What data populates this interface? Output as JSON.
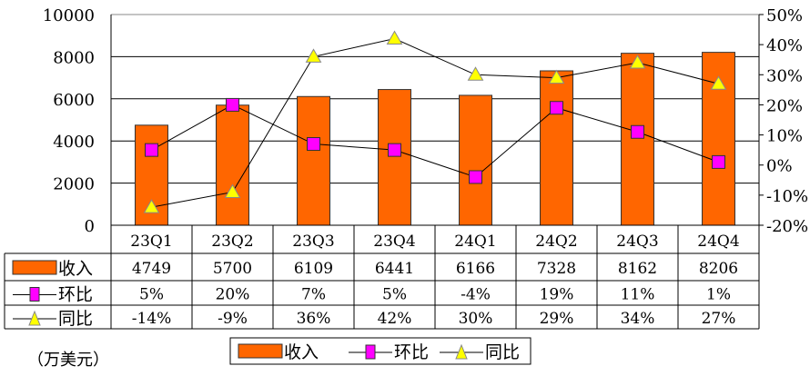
{
  "chart_data": {
    "type": "bar",
    "categories": [
      "23Q1",
      "23Q2",
      "23Q3",
      "23Q4",
      "24Q1",
      "24Q2",
      "24Q3",
      "24Q4"
    ],
    "series": [
      {
        "name": "收入",
        "type": "bar",
        "axis": "left",
        "color": "#FF6600",
        "values": [
          4749,
          5700,
          6109,
          6441,
          6166,
          7328,
          8162,
          8206
        ],
        "labels": [
          "4749",
          "5700",
          "6109",
          "6441",
          "6166",
          "7328",
          "8162",
          "8206"
        ]
      },
      {
        "name": "环比",
        "type": "line",
        "axis": "right",
        "marker": "square",
        "color": "#FF00FF",
        "values": [
          5,
          20,
          7,
          5,
          -4,
          19,
          11,
          1
        ],
        "labels": [
          "5%",
          "20%",
          "7%",
          "5%",
          "-4%",
          "19%",
          "11%",
          "1%"
        ]
      },
      {
        "name": "同比",
        "type": "line",
        "axis": "right",
        "marker": "triangle",
        "color": "#FFFF00",
        "values": [
          -14,
          -9,
          36,
          42,
          30,
          29,
          34,
          27
        ],
        "labels": [
          "-14%",
          "-9%",
          "36%",
          "42%",
          "30%",
          "29%",
          "34%",
          "27%"
        ]
      }
    ],
    "ylim": [
      0,
      10000
    ],
    "yticks": [
      "0",
      "2000",
      "4000",
      "6000",
      "8000",
      "10000"
    ],
    "y2lim": [
      -20,
      50
    ],
    "y2ticks": [
      "-20%",
      "-10%",
      "0%",
      "10%",
      "20%",
      "30%",
      "40%",
      "50%"
    ],
    "grid": true,
    "unit_note": "（万美元）",
    "legend_position": "bottom"
  }
}
